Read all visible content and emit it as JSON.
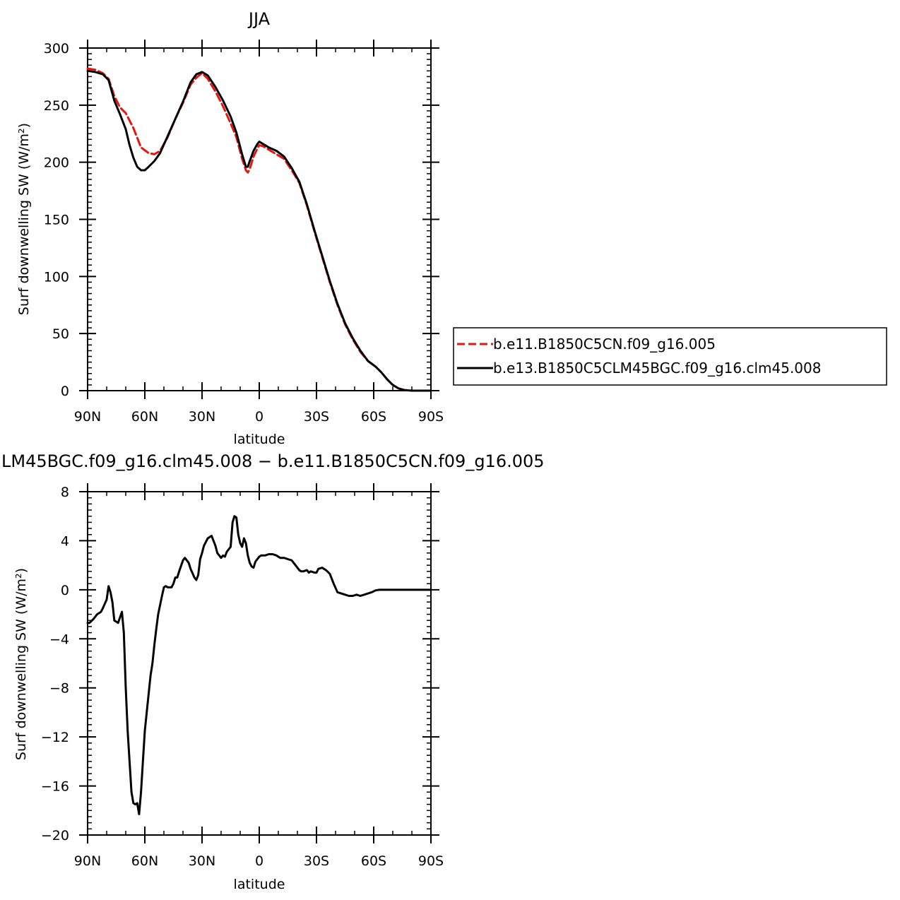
{
  "chart_data": [
    {
      "type": "line",
      "title": "JJA",
      "xlabel": "latitude",
      "ylabel": "Surf downwelling SW (W/m²)",
      "xlim": [
        90,
        -90
      ],
      "ylim": [
        0,
        300
      ],
      "x_ticks": [
        90,
        60,
        30,
        0,
        -30,
        -60,
        -90
      ],
      "x_tick_labels": [
        "90N",
        "60N",
        "30N",
        "0",
        "30S",
        "60S",
        "90S"
      ],
      "y_ticks": [
        0,
        50,
        100,
        150,
        200,
        250,
        300
      ],
      "y_tick_labels": [
        "0",
        "50",
        "100",
        "150",
        "200",
        "250",
        "300"
      ],
      "grid": false,
      "legend_position": "right",
      "series": [
        {
          "name": "b.e11.B1850C5CN.f09_g16.005",
          "color": "#e8150f",
          "dash": "dashed",
          "x": [
            90,
            86,
            82,
            79,
            76,
            73,
            70,
            66,
            62,
            58,
            55,
            52,
            48,
            44,
            40,
            36,
            33,
            30,
            27,
            23,
            19,
            15,
            12,
            9,
            7,
            6,
            5,
            3,
            1,
            0,
            -2,
            -5,
            -9,
            -13,
            -17,
            -21,
            -25,
            -29,
            -33,
            -37,
            -41,
            -45,
            -49,
            -53,
            -57,
            -61,
            -64,
            -67,
            -70,
            -73,
            -76,
            -80,
            -85,
            -90
          ],
          "y": [
            282,
            281,
            278,
            273,
            258,
            248,
            243,
            230,
            213,
            208,
            207,
            210,
            222,
            238,
            252,
            268,
            274,
            278,
            273,
            262,
            249,
            234,
            222,
            203,
            193,
            191,
            194,
            205,
            212,
            215,
            214,
            211,
            207,
            203,
            193,
            182,
            162,
            139,
            117,
            95,
            75,
            58,
            45,
            34,
            26,
            21,
            16,
            10,
            5,
            2,
            0.6,
            0,
            0,
            0
          ]
        },
        {
          "name": "b.e13.B1850C5CLM45BGC.f09_g16.clm45.008",
          "color": "#000000",
          "dash": "solid",
          "x": [
            90,
            86,
            82,
            79,
            76,
            73,
            70,
            68,
            66,
            64,
            62,
            60,
            58,
            55,
            52,
            48,
            44,
            40,
            36,
            33,
            30,
            27,
            23,
            19,
            15,
            12,
            9,
            7,
            6,
            5,
            3,
            1,
            0,
            -2,
            -5,
            -9,
            -13,
            -17,
            -21,
            -25,
            -29,
            -33,
            -37,
            -41,
            -45,
            -49,
            -53,
            -57,
            -61,
            -64,
            -67,
            -70,
            -73,
            -76,
            -80,
            -85,
            -90
          ],
          "y": [
            280,
            279,
            277,
            272,
            254,
            242,
            229,
            215,
            204,
            196,
            193,
            193,
            196,
            201,
            208,
            223,
            238,
            253,
            270,
            277,
            279,
            276,
            266,
            254,
            240,
            226,
            207,
            196,
            196,
            201,
            210,
            216,
            218,
            216,
            213,
            210,
            205,
            195,
            183,
            163,
            140,
            118,
            96,
            76,
            59,
            46,
            35,
            26,
            21,
            16,
            10,
            5,
            2,
            0.5,
            0,
            0,
            0
          ]
        }
      ]
    },
    {
      "type": "line",
      "title": "LM45BGC.f09_g16.clm45.008 − b.e11.B1850C5CN.f09_g16.005",
      "xlabel": "latitude",
      "ylabel": "Surf downwelling SW (W/m²)",
      "xlim": [
        90,
        -90
      ],
      "ylim": [
        -20,
        8
      ],
      "x_ticks": [
        90,
        60,
        30,
        0,
        -30,
        -60,
        -90
      ],
      "x_tick_labels": [
        "90N",
        "60N",
        "30N",
        "0",
        "30S",
        "60S",
        "90S"
      ],
      "y_ticks": [
        -20,
        -16,
        -12,
        -8,
        -4,
        0,
        4,
        8
      ],
      "y_tick_labels": [
        "−20",
        "−16",
        "−12",
        "−8",
        "−4",
        "0",
        "4",
        "8"
      ],
      "grid": false,
      "series": [
        {
          "color": "#000000",
          "dash": "solid",
          "x": [
            90,
            89,
            87,
            85,
            83,
            82,
            80,
            79,
            78,
            77,
            76,
            75,
            74,
            72,
            71,
            70,
            69,
            68,
            67,
            66,
            65,
            64,
            63,
            62,
            61,
            60,
            59,
            57,
            56,
            55,
            54,
            53,
            51,
            50,
            49,
            48,
            46,
            45,
            44,
            43,
            42,
            40,
            39,
            37,
            36,
            34,
            33,
            32,
            31,
            30,
            29,
            27,
            25,
            23,
            22,
            20,
            19,
            18,
            17,
            15,
            14,
            13,
            12,
            11,
            10,
            9,
            8,
            7,
            6,
            5,
            4,
            3,
            2,
            1,
            0,
            -1,
            -3,
            -5,
            -7,
            -9,
            -11,
            -13,
            -15,
            -17,
            -19,
            -21,
            -22,
            -23,
            -25,
            -26,
            -27,
            -29,
            -30,
            -31,
            -33,
            -35,
            -37,
            -39,
            -41,
            -43,
            -45,
            -47,
            -49,
            -51,
            -53,
            -55,
            -57,
            -59,
            -61,
            -63,
            -65,
            -67,
            -70,
            -75,
            -80,
            -85,
            -90
          ],
          "y": [
            -2.7,
            -2.7,
            -2.4,
            -2.0,
            -1.8,
            -1.5,
            -0.8,
            0.3,
            -0.2,
            -1.0,
            -2.5,
            -2.6,
            -2.7,
            -1.8,
            -3.5,
            -8.0,
            -11.5,
            -14.0,
            -16.5,
            -17.4,
            -17.5,
            -17.4,
            -18.3,
            -16.5,
            -14.0,
            -11.5,
            -10.0,
            -7.0,
            -6.0,
            -4.5,
            -3.2,
            -2.0,
            -0.5,
            0.2,
            0.3,
            0.2,
            0.2,
            0.5,
            1.0,
            1.0,
            1.5,
            2.4,
            2.6,
            2.2,
            1.7,
            1.0,
            0.8,
            1.2,
            2.5,
            3.0,
            3.6,
            4.2,
            4.4,
            3.6,
            3.0,
            2.6,
            2.8,
            2.7,
            3.1,
            3.5,
            5.5,
            6.0,
            5.9,
            4.5,
            3.8,
            3.5,
            4.2,
            3.8,
            2.8,
            2.2,
            1.9,
            1.8,
            2.3,
            2.5,
            2.7,
            2.8,
            2.8,
            2.9,
            2.9,
            2.8,
            2.6,
            2.6,
            2.5,
            2.4,
            2.0,
            1.6,
            1.5,
            1.5,
            1.6,
            1.4,
            1.5,
            1.4,
            1.4,
            1.7,
            1.8,
            1.6,
            1.3,
            0.5,
            -0.2,
            -0.3,
            -0.4,
            -0.5,
            -0.5,
            -0.4,
            -0.5,
            -0.4,
            -0.3,
            -0.2,
            -0.05,
            0.0,
            0.0,
            0.0,
            0.0,
            0.0,
            0.0,
            0.0,
            0.0
          ]
        }
      ]
    }
  ]
}
